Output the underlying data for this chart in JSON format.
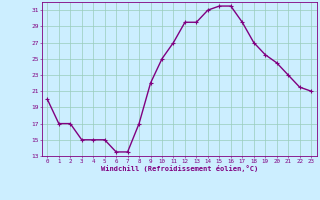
{
  "x": [
    0,
    1,
    2,
    3,
    4,
    5,
    6,
    7,
    8,
    9,
    10,
    11,
    12,
    13,
    14,
    15,
    16,
    17,
    18,
    19,
    20,
    21,
    22,
    23
  ],
  "y": [
    20,
    17,
    17,
    15,
    15,
    15,
    13.5,
    13.5,
    17,
    22,
    25,
    27,
    29.5,
    29.5,
    31,
    31.5,
    31.5,
    29.5,
    27,
    25.5,
    24.5,
    23,
    21.5,
    21
  ],
  "line_color": "#800080",
  "marker": "+",
  "marker_size": 3,
  "bg_color": "#cceeff",
  "grid_color": "#99ccbb",
  "xlabel": "Windchill (Refroidissement éolien,°C)",
  "xlabel_color": "#800080",
  "tick_color": "#800080",
  "xlim_min": -0.5,
  "xlim_max": 23.5,
  "ylim_min": 13,
  "ylim_max": 32,
  "yticks": [
    13,
    15,
    17,
    19,
    21,
    23,
    25,
    27,
    29,
    31
  ],
  "xticks": [
    0,
    1,
    2,
    3,
    4,
    5,
    6,
    7,
    8,
    9,
    10,
    11,
    12,
    13,
    14,
    15,
    16,
    17,
    18,
    19,
    20,
    21,
    22,
    23
  ],
  "figsize": [
    3.2,
    2.0
  ],
  "dpi": 100,
  "line_width": 1.0
}
